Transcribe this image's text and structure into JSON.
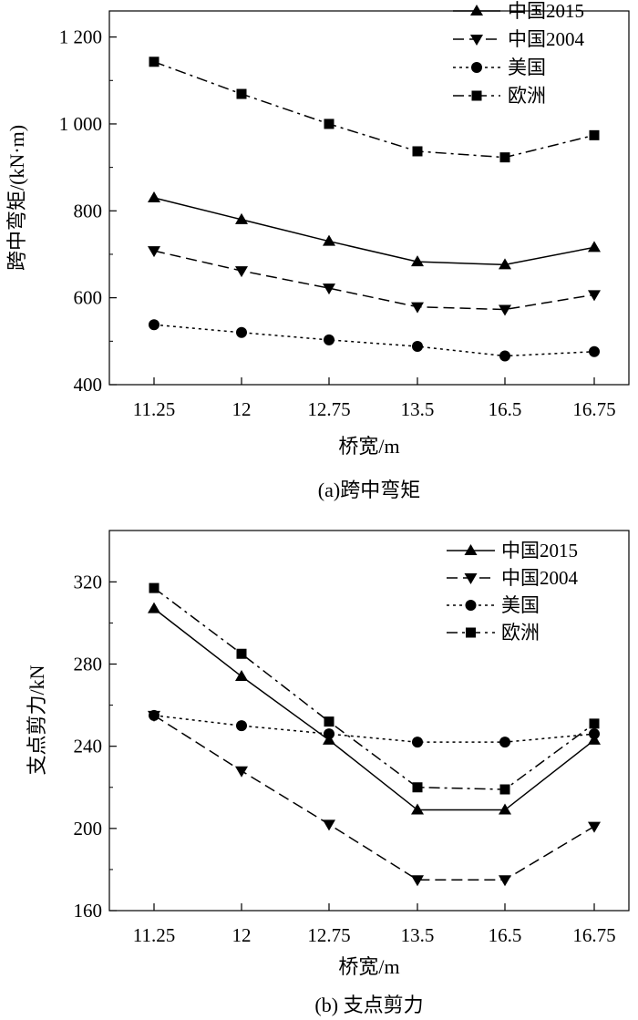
{
  "chart_data": [
    {
      "type": "line",
      "title": "",
      "caption": "(a)跨中弯矩",
      "xlabel": "桥宽/m",
      "ylabel": "跨中弯矩/(kN·m)",
      "categories": [
        "11.25",
        "12",
        "12.75",
        "13.5",
        "16.5",
        "16.75"
      ],
      "ylim": [
        400,
        1260
      ],
      "yticks": [
        400,
        600,
        800,
        1000,
        1200
      ],
      "ytick_labels": [
        "400",
        "600",
        "800",
        "1 000",
        "1 200"
      ],
      "legend_position": "top-right",
      "series": [
        {
          "name": "中国2015",
          "marker": "triangle-up",
          "dash": "solid",
          "values": [
            830,
            780,
            730,
            683,
            676,
            716
          ]
        },
        {
          "name": "中国2004",
          "marker": "triangle-down",
          "dash": "dashed",
          "values": [
            708,
            662,
            622,
            579,
            573,
            607
          ]
        },
        {
          "name": "美国",
          "marker": "circle",
          "dash": "dotted",
          "values": [
            538,
            520,
            503,
            488,
            466,
            476
          ]
        },
        {
          "name": "欧洲",
          "marker": "square",
          "dash": "dashdot",
          "values": [
            1143,
            1069,
            1000,
            937,
            923,
            974
          ]
        }
      ]
    },
    {
      "type": "line",
      "title": "",
      "caption": "(b) 支点剪力",
      "xlabel": "桥宽/m",
      "ylabel": "支点剪力/kN",
      "categories": [
        "11.25",
        "12",
        "12.75",
        "13.5",
        "16.5",
        "16.75"
      ],
      "ylim": [
        160,
        345
      ],
      "yticks": [
        160,
        200,
        240,
        280,
        320
      ],
      "ytick_labels": [
        "160",
        "200",
        "240",
        "280",
        "320"
      ],
      "legend_position": "top-right",
      "series": [
        {
          "name": "中国2015",
          "marker": "triangle-up",
          "dash": "solid",
          "values": [
            307,
            274,
            243,
            209,
            209,
            243
          ]
        },
        {
          "name": "中国2004",
          "marker": "triangle-down",
          "dash": "dashed",
          "values": [
            255,
            228,
            202,
            175,
            175,
            201
          ]
        },
        {
          "name": "美国",
          "marker": "circle",
          "dash": "dotted",
          "values": [
            255,
            250,
            246,
            242,
            242,
            246
          ]
        },
        {
          "name": "欧洲",
          "marker": "square",
          "dash": "dashdot",
          "values": [
            317,
            285,
            252,
            220,
            219,
            251
          ]
        }
      ]
    }
  ]
}
